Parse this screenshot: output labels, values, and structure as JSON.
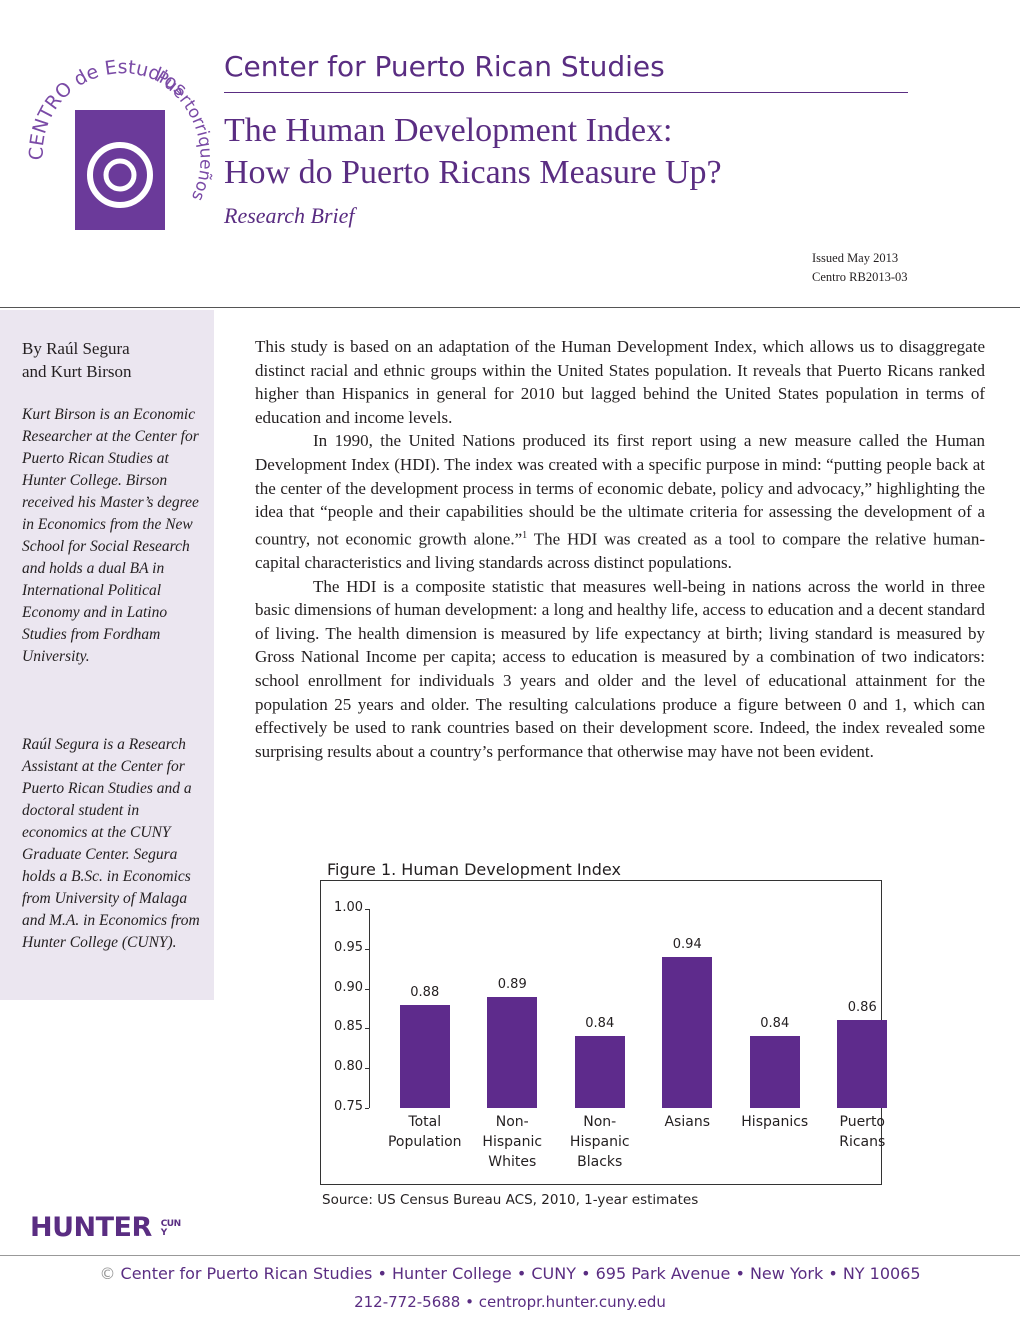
{
  "logo": {
    "arc_top": "CENTRO de Estudios",
    "arc_side": "Puertorriqueños"
  },
  "header": {
    "org": "Center for Puerto Rican Studies",
    "title_line1": "The Human Development Index:",
    "title_line2": "How do Puerto Ricans Measure Up?",
    "subtitle": "Research Brief",
    "issued": "Issued May 2013",
    "number": "Centro RB2013-03"
  },
  "sidebar": {
    "byline1": "By Raúl Segura",
    "byline2": "and Kurt Birson",
    "bio1": "Kurt Birson is an Economic Researcher at the Center for Puerto Rican Studies at Hunter College. Birson received his Master’s degree in Economics from the New School for Social Research and holds a dual BA in International Political Economy and in Latino Studies from Fordham University.",
    "bio2": "Raúl Segura is a Research Assistant at the Center for Puerto Rican Studies and a doctoral student in economics at the CUNY Graduate Center. Segura holds a B.Sc. in Economics from University of Malaga and M.A. in Economics from Hunter College (CUNY)."
  },
  "body": {
    "p1": "This study is based on an adaptation of the Human Development Index, which allows us to disaggregate distinct racial and ethnic groups within the United States population. It reveals that Puerto Ricans ranked higher than Hispanics in general for 2010 but lagged behind the United States population in terms of education and income levels.",
    "p2a": "In 1990, the United Nations produced its first report using a new measure called the Human Development Index (HDI). The index was created with a specific purpose in mind: “putting people back at the center of the development process in terms of economic debate, policy and advocacy,” highlighting the idea that “people and their capabilities should be the ultimate criteria for assessing the development of a country, not economic growth alone.”",
    "p2_footnote": "1",
    "p2b": "The HDI was created as a tool to compare the relative human-capital characteristics and living standards across distinct populations.",
    "p3": "The HDI is a composite statistic that measures well-being in nations across the world in three basic dimensions of human development: a long and healthy life, access to education and a decent standard of living. The health dimension is measured by life expectancy at birth; living standard is measured by Gross National Income per capita; access to education is measured by a combination of two indicators: school enrollment for individuals 3 years and older and the level of educational attainment for the population 25 years and older. The resulting calculations produce a figure between 0 and 1, which can effectively be used to rank countries based on their development score. Indeed, the index revealed some surprising results about a country’s performance that otherwise may have not been evident."
  },
  "chart_data": {
    "type": "bar",
    "title": "Figure 1. Human Development Index",
    "categories": [
      "Total Population",
      "Non-Hispanic Whites",
      "Non-Hispanic Blacks",
      "Asians",
      "Hispanics",
      "Puerto Ricans"
    ],
    "values": [
      0.88,
      0.89,
      0.84,
      0.94,
      0.84,
      0.86
    ],
    "color": "#5e2b8c",
    "ylim": [
      0.75,
      1.0
    ],
    "yticks": [
      {
        "value": 0.75,
        "label": "0.75"
      },
      {
        "value": 0.8,
        "label": "0.80"
      },
      {
        "value": 0.85,
        "label": "0.85"
      },
      {
        "value": 0.9,
        "label": "0.90"
      },
      {
        "value": 0.95,
        "label": "0.95"
      },
      {
        "value": 1.0,
        "label": "1.00"
      }
    ],
    "source": "Source: US Census Bureau ACS, 2010, 1-year estimates"
  },
  "footer": {
    "logo": "HUNTER",
    "logo_sub": "CUNY",
    "copyright": "©",
    "address": "Center for Puerto Rican Studies • Hunter College • CUNY • 695 Park Avenue • New York • NY 10065",
    "contact": "212-772-5688 • centropr.hunter.cuny.edu"
  }
}
